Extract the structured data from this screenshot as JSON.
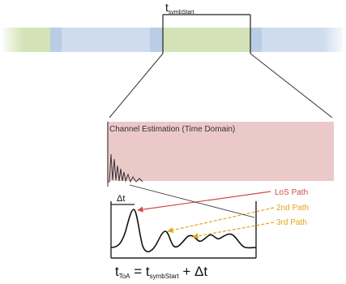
{
  "labels": {
    "t_symbstart_main": "t",
    "t_symbstart_sub": "symbStart",
    "channel_estimation": "Channel Estimation (Time Domain)",
    "delta_t": "Δt",
    "los_path": "LoS Path",
    "path_2nd": "2nd Path",
    "path_3rd": "3rd Path",
    "formula_lhs": "t",
    "formula_lhs_sub": "ToA",
    "formula_eq": " = ",
    "formula_rhs": "t",
    "formula_rhs_sub": "symbStart",
    "formula_tail": " + Δt"
  },
  "colors": {
    "band_green": "#d4e3b5",
    "band_blue": "#cfdced",
    "band_dark_blue": "#b9cde6",
    "channel_box": "#ecc9c9",
    "los_arrow": "#d04a4a",
    "second_path": "#e3a51c",
    "third_path": "#e3a51c"
  }
}
